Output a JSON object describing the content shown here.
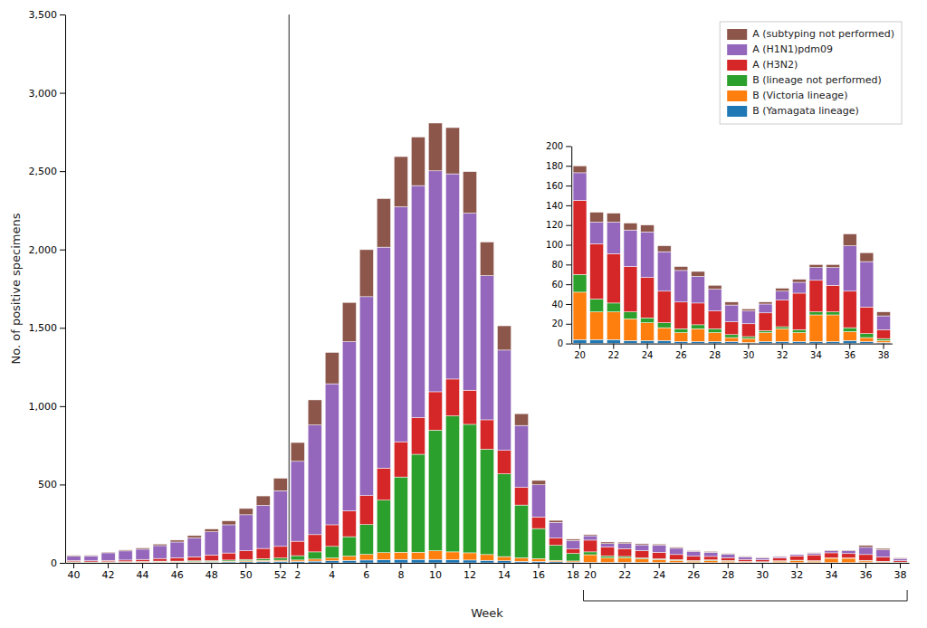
{
  "chart_data": [
    {
      "type": "bar",
      "stacked": true,
      "grid": false,
      "legend": "upper right",
      "xlabel": "Week",
      "ylabel": "No. of positive specimens",
      "categories": [
        "40",
        null,
        "42",
        null,
        "44",
        null,
        "46",
        null,
        "48",
        null,
        "50",
        null,
        "52",
        "2",
        null,
        "4",
        null,
        "6",
        null,
        "8",
        null,
        "10",
        null,
        "12",
        null,
        "14",
        null,
        "16",
        null,
        "18",
        "20",
        null,
        "22",
        null,
        "24",
        null,
        "26",
        null,
        "28",
        null,
        "30",
        null,
        "32",
        null,
        "34",
        null,
        "36",
        null,
        "38"
      ],
      "ylim": [
        0,
        3500
      ],
      "yticks": [
        0,
        500,
        {
          "value": 1000,
          "label": "1,000"
        },
        {
          "value": 1500,
          "label": "1,500"
        },
        {
          "value": 2000,
          "label": "2,000"
        },
        {
          "value": 2500,
          "label": "2,500"
        },
        {
          "value": 3000,
          "label": "3,000"
        },
        {
          "value": 3500,
          "label": "3,500"
        }
      ],
      "series": [
        {
          "name": "B (Yamagata lineage)",
          "values": [
            3,
            2,
            3,
            3,
            3,
            4,
            4,
            4,
            5,
            6,
            7,
            9,
            10,
            9,
            11,
            13,
            16,
            18,
            20,
            22,
            22,
            22,
            20,
            18,
            16,
            13,
            10,
            9,
            7,
            5,
            4,
            4,
            4,
            3,
            3,
            3,
            2,
            2,
            2,
            2,
            1,
            2,
            2,
            2,
            2,
            2,
            3,
            2,
            1
          ]
        },
        {
          "name": "B (Victoria lineage)",
          "values": [
            2,
            2,
            2,
            2,
            3,
            3,
            3,
            4,
            4,
            5,
            6,
            7,
            7,
            9,
            13,
            18,
            27,
            36,
            45,
            46,
            46,
            55,
            50,
            46,
            37,
            27,
            22,
            18,
            9,
            7,
            48,
            28,
            28,
            22,
            18,
            13,
            9,
            13,
            9,
            4,
            4,
            9,
            13,
            9,
            27,
            27,
            9,
            4,
            2
          ]
        },
        {
          "name": "B (lineage not performed)",
          "values": [
            2,
            2,
            2,
            3,
            3,
            4,
            4,
            5,
            5,
            7,
            9,
            11,
            14,
            28,
            46,
            74,
            124,
            190,
            335,
            480,
            625,
            770,
            868,
            820,
            672,
            528,
            337,
            192,
            96,
            48,
            18,
            13,
            9,
            7,
            5,
            5,
            4,
            4,
            4,
            3,
            2,
            2,
            2,
            3,
            3,
            3,
            4,
            4,
            2
          ]
        },
        {
          "name": "A (H3N2)",
          "values": [
            8,
            7,
            9,
            10,
            13,
            17,
            22,
            26,
            36,
            45,
            55,
            65,
            74,
            92,
            110,
            138,
            165,
            185,
            205,
            225,
            235,
            245,
            235,
            218,
            188,
            150,
            113,
            74,
            46,
            28,
            75,
            56,
            50,
            46,
            41,
            32,
            27,
            22,
            18,
            13,
            13,
            18,
            27,
            37,
            32,
            27,
            37,
            27,
            9
          ]
        },
        {
          "name": "A (H1N1)pdm09",
          "values": [
            28,
            32,
            48,
            58,
            65,
            82,
            100,
            120,
            148,
            180,
            230,
            275,
            355,
            510,
            700,
            900,
            1080,
            1270,
            1410,
            1500,
            1480,
            1410,
            1310,
            1130,
            920,
            640,
            395,
            205,
            100,
            55,
            28,
            22,
            32,
            37,
            46,
            40,
            32,
            27,
            22,
            17,
            13,
            9,
            9,
            11,
            13,
            18,
            46,
            46,
            14
          ]
        },
        {
          "name": "A (subtyping not performed)",
          "values": [
            5,
            4,
            5,
            6,
            8,
            10,
            12,
            15,
            18,
            25,
            40,
            60,
            80,
            120,
            160,
            200,
            250,
            300,
            310,
            320,
            310,
            305,
            295,
            265,
            215,
            155,
            75,
            28,
            13,
            8,
            7,
            10,
            9,
            7,
            7,
            6,
            4,
            5,
            4,
            3,
            2,
            2,
            3,
            3,
            3,
            3,
            12,
            9,
            4
          ]
        }
      ]
    },
    {
      "type": "bar",
      "stacked": true,
      "grid": false,
      "categories": [
        "20",
        null,
        "22",
        null,
        "24",
        null,
        "26",
        null,
        "28",
        null,
        "30",
        null,
        "32",
        null,
        "34",
        null,
        "36",
        null,
        "38"
      ],
      "ylim": [
        0,
        200
      ],
      "yticks": [
        0,
        20,
        40,
        60,
        80,
        100,
        120,
        140,
        160,
        180,
        200
      ],
      "series": [
        {
          "values": [
            4,
            4,
            4,
            3,
            3,
            3,
            2,
            2,
            2,
            2,
            1,
            2,
            2,
            2,
            2,
            2,
            3,
            2,
            1
          ]
        },
        {
          "values": [
            48,
            28,
            28,
            22,
            18,
            13,
            9,
            13,
            9,
            4,
            4,
            9,
            13,
            9,
            27,
            27,
            9,
            4,
            2
          ]
        },
        {
          "values": [
            18,
            13,
            9,
            7,
            5,
            5,
            4,
            4,
            4,
            3,
            2,
            2,
            2,
            3,
            3,
            3,
            4,
            4,
            2
          ]
        },
        {
          "values": [
            75,
            56,
            50,
            46,
            41,
            32,
            27,
            22,
            18,
            13,
            13,
            18,
            27,
            37,
            32,
            27,
            37,
            27,
            9
          ]
        },
        {
          "values": [
            28,
            22,
            32,
            37,
            46,
            40,
            32,
            27,
            22,
            17,
            13,
            9,
            9,
            11,
            13,
            18,
            46,
            46,
            14
          ]
        },
        {
          "values": [
            7,
            10,
            9,
            7,
            7,
            6,
            4,
            5,
            4,
            3,
            2,
            2,
            3,
            3,
            3,
            3,
            12,
            9,
            4
          ]
        }
      ]
    }
  ]
}
